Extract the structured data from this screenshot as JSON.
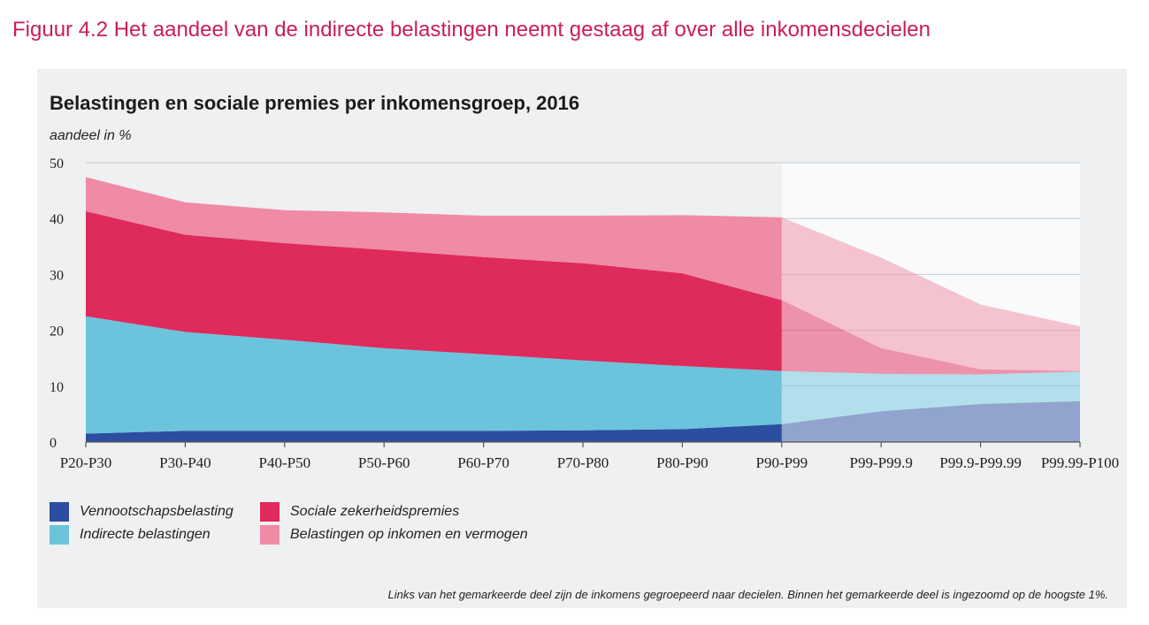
{
  "figure_title": "Figuur 4.2   Het aandeel van de indirecte belastingen neemt gestaag af over alle inkomensdecielen",
  "footnote": "Links van het gemarkeerde deel zijn de inkomens gegroepeerd naar decielen. Binnen het gemarkeerde deel is ingezoomd op de hoogste 1%.",
  "colors": {
    "title": "#c81e5b",
    "panel_background": "#eef0f1",
    "highlight_background": "#f8fafb",
    "vennootschapsbelasting": "#2c4ea0",
    "indirecte_belastingen": "#6cc3dc",
    "sociale_zekerheidspremies": "#df2a5c",
    "belastingen_op_inkomen": "#ef8ba4"
  },
  "chart_data": {
    "type": "area",
    "stacked": true,
    "title": "Belastingen en sociale premies per inkomensgroep, 2016",
    "ylabel": "aandeel in %",
    "ylim": [
      0,
      50
    ],
    "yticks": [
      0,
      10,
      20,
      30,
      40,
      50
    ],
    "grid": true,
    "legend_position": "bottom-left",
    "categories": [
      "P20-P30",
      "P30-P40",
      "P40-P50",
      "P50-P60",
      "P60-P70",
      "P70-P80",
      "P80-P90",
      "P90-P99",
      "P99-P99.9",
      "P99.9-P99.99",
      "P99.99-P100"
    ],
    "highlight_range": [
      "P90-P99",
      "P99.99-P100"
    ],
    "series": [
      {
        "name": "Vennootschapsbelasting",
        "color": "#2c4ea0",
        "values": [
          1.5,
          2.0,
          2.0,
          2.0,
          2.0,
          2.1,
          2.3,
          3.2,
          5.5,
          6.8,
          7.3
        ]
      },
      {
        "name": "Indirecte belastingen",
        "color": "#6cc3dc",
        "values": [
          21.0,
          17.7,
          16.3,
          14.8,
          13.7,
          12.5,
          11.3,
          9.5,
          6.7,
          5.3,
          5.3
        ]
      },
      {
        "name": "Sociale zekerheidspremies",
        "color": "#df2a5c",
        "values": [
          18.8,
          17.4,
          17.3,
          17.6,
          17.4,
          17.4,
          16.6,
          12.7,
          4.6,
          0.9,
          0.1
        ]
      },
      {
        "name": "Belastingen op inkomen en vermogen",
        "color": "#ef8ba4",
        "values": [
          6.1,
          5.8,
          5.9,
          6.7,
          7.4,
          8.5,
          10.4,
          14.8,
          16.2,
          11.6,
          8.0
        ]
      }
    ]
  }
}
